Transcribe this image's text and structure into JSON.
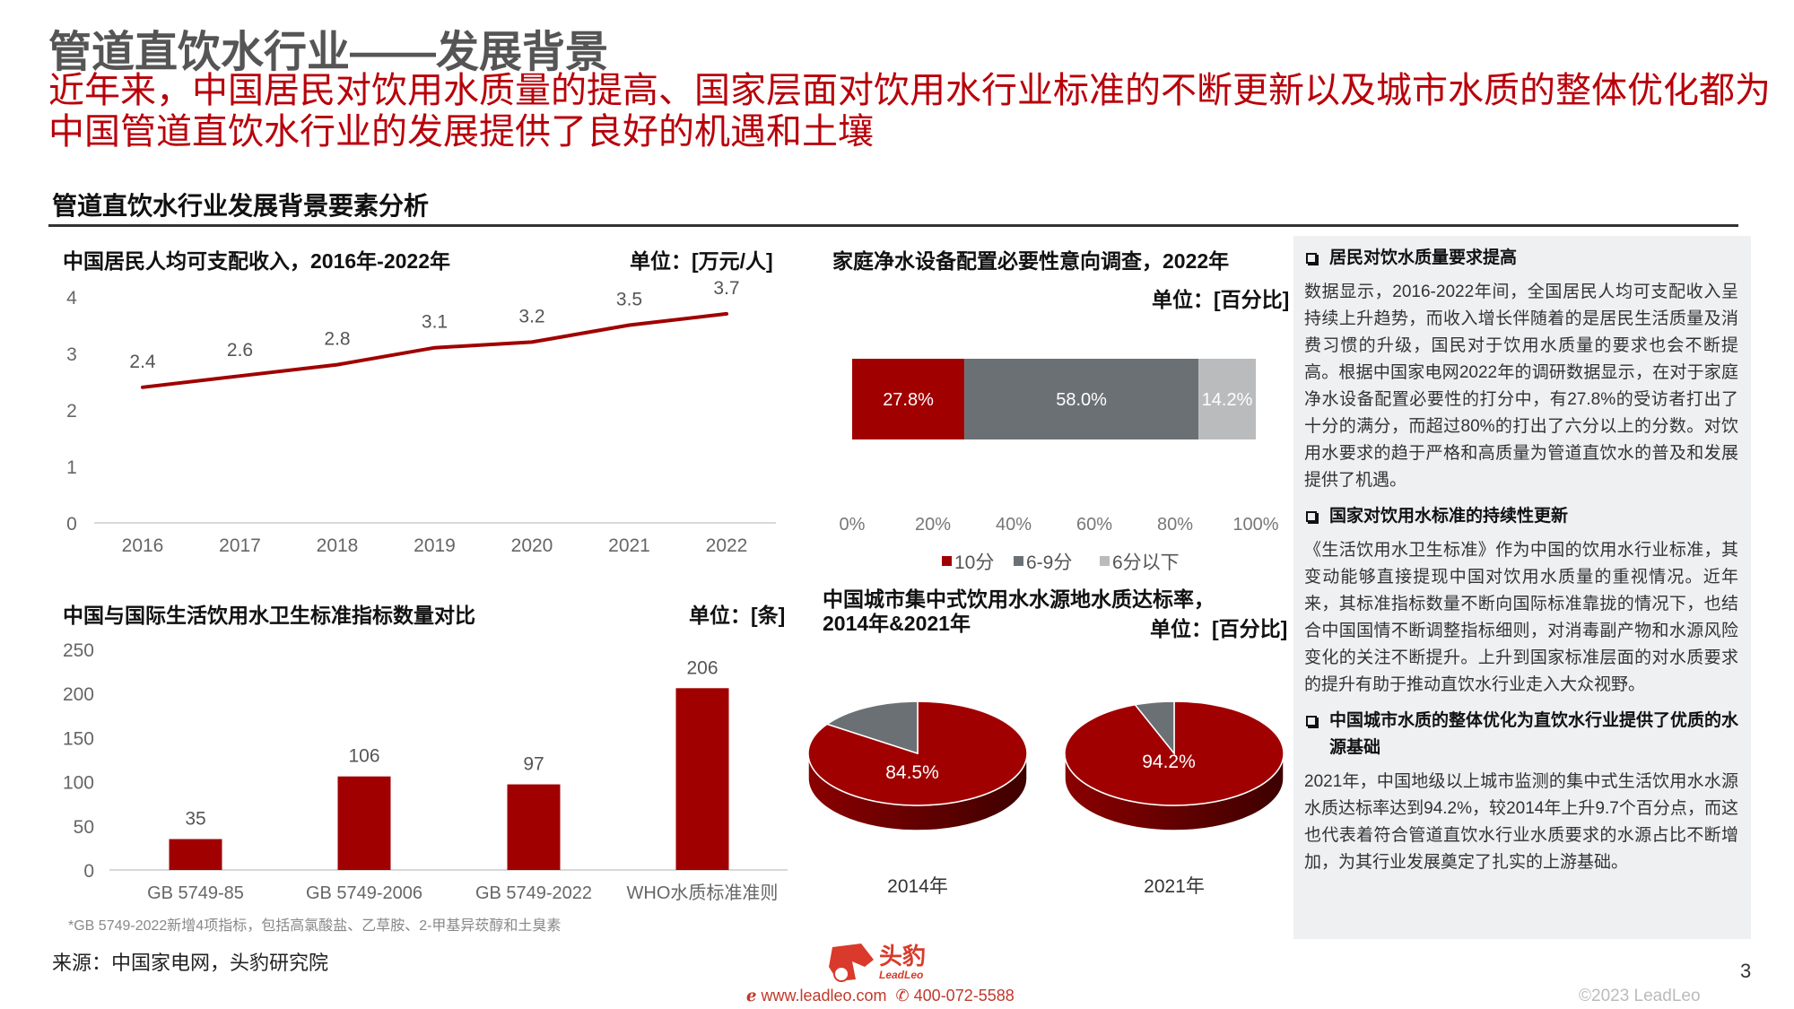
{
  "header": {
    "title": "管道直饮水行业——发展背景",
    "subtitle": "近年来，中国居民对饮用水质量的提高、国家层面对饮用水行业标准的不断更新以及城市水质的整体优化都为中国管道直饮水行业的发展提供了良好的机遇和土壤",
    "section": "管道直饮水行业发展背景要素分析"
  },
  "colors": {
    "red": "#a00000",
    "gray": "#6b7075",
    "lightgray": "#b9bbbd",
    "title_red": "#b8000a"
  },
  "chart_data": [
    {
      "type": "line",
      "title": "中国居民人均可支配收入，2016年-2022年",
      "unit": "单位：[万元/人]",
      "categories": [
        "2016",
        "2017",
        "2018",
        "2019",
        "2020",
        "2021",
        "2022"
      ],
      "values": [
        2.4,
        2.6,
        2.8,
        3.1,
        3.2,
        3.5,
        3.7
      ],
      "labels": [
        "2.4",
        "2.6",
        "2.8",
        "3.1",
        "3.2",
        "3.5",
        "3.7"
      ],
      "yticks": [
        "0",
        "1",
        "2",
        "3",
        "4"
      ],
      "ylim": [
        0,
        4
      ]
    },
    {
      "type": "bar",
      "title": "中国与国际生活饮用水卫生标准指标数量对比",
      "unit": "单位：[条]",
      "categories": [
        "GB 5749-85",
        "GB 5749-2006",
        "GB 5749-2022",
        "WHO水质标准准则"
      ],
      "values": [
        35,
        106,
        97,
        206
      ],
      "labels": [
        "35",
        "106",
        "97",
        "206"
      ],
      "yticks": [
        "0",
        "50",
        "100",
        "150",
        "200",
        "250"
      ],
      "ylim": [
        0,
        250
      ]
    },
    {
      "type": "bar",
      "orientation": "horizontal-stacked",
      "title": "家庭净水设备配置必要性意向调查，2022年",
      "unit": "单位：[百分比]",
      "series": [
        {
          "name": "10分",
          "value": 27.8,
          "label": "27.8%"
        },
        {
          "name": "6-9分",
          "value": 58.0,
          "label": "58.0%"
        },
        {
          "name": "6分以下",
          "value": 14.2,
          "label": "14.2%"
        }
      ],
      "xticks": [
        "0%",
        "20%",
        "40%",
        "60%",
        "80%",
        "100%"
      ],
      "xlim": [
        0,
        100
      ],
      "legend": "bottom"
    },
    {
      "type": "pie",
      "title": "中国城市集中式饮用水水源地水质达标率，2014年&2021年",
      "unit": "单位：[百分比]",
      "pies": [
        {
          "name": "2014年",
          "value": 84.5,
          "label": "84.5%"
        },
        {
          "name": "2021年",
          "value": 94.2,
          "label": "94.2%"
        }
      ]
    }
  ],
  "panel": {
    "sections": [
      {
        "heading": "居民对饮水质量要求提高",
        "text": "数据显示，2016-2022年间，全国居民人均可支配收入呈持续上升趋势，而收入增长伴随着的是居民生活质量及消费习惯的升级，国民对于饮用水质量的要求也会不断提高。根据中国家电网2022年的调研数据显示，在对于家庭净水设备配置必要性的打分中，有27.8%的受访者打出了十分的满分，而超过80%的打出了六分以上的分数。对饮用水要求的趋于严格和高质量为管道直饮水的普及和发展提供了机遇。"
      },
      {
        "heading": "国家对饮用水标准的持续性更新",
        "text": "《生活饮用水卫生标准》作为中国的饮用水行业标准，其变动能够直接提现中国对饮用水质量的重视情况。近年来，其标准指标数量不断向国际标准靠拢的情况下，也结合中国国情不断调整指标细则，对消毒副产物和水源风险变化的关注不断提升。上升到国家标准层面的对水质要求的提升有助于推动直饮水行业走入大众视野。"
      },
      {
        "heading": "中国城市水质的整体优化为直饮水行业提供了优质的水源基础",
        "text": "2021年，中国地级以上城市监测的集中式生活饮用水水源水质达标率达到94.2%，较2014年上升9.7个百分点，而这也代表着符合管道直饮水行业水质要求的水源占比不断增加，为其行业发展奠定了扎实的上游基础。"
      }
    ]
  },
  "footer": {
    "footnote": "*GB 5749-2022新增4项指标，包括高氯酸盐、乙草胺、2-甲基异莰醇和土臭素",
    "source": "来源：中国家电网，头豹研究院",
    "logo_text": "头豹",
    "logo_sub": "LeadLeo",
    "website": "www.leadleo.com",
    "phone": "400-072-5588",
    "copyright": "©2023 LeadLeo",
    "page": "3"
  }
}
